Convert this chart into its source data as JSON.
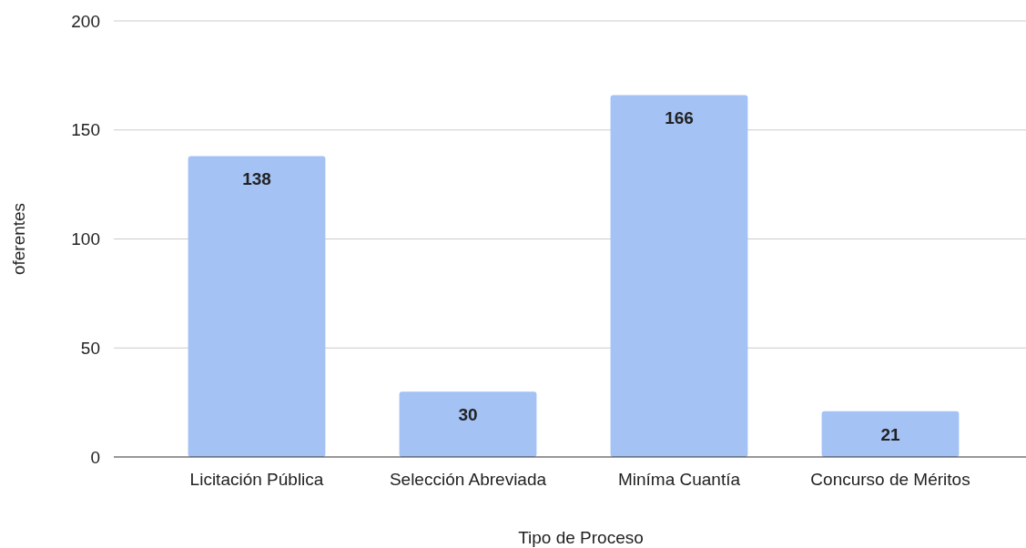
{
  "chart_data": {
    "type": "bar",
    "xlabel": "Tipo de Proceso",
    "ylabel": "oferentes",
    "categories": [
      "Licitación Pública",
      "Selección Abreviada",
      "Miníma Cuantía",
      "Concurso de Méritos"
    ],
    "values": [
      138,
      30,
      166,
      21
    ],
    "color": "#a4c2f4",
    "ylim": [
      0,
      200
    ],
    "yticks": [
      0,
      50,
      100,
      150,
      200
    ],
    "grid": "y",
    "data_labels": true
  }
}
